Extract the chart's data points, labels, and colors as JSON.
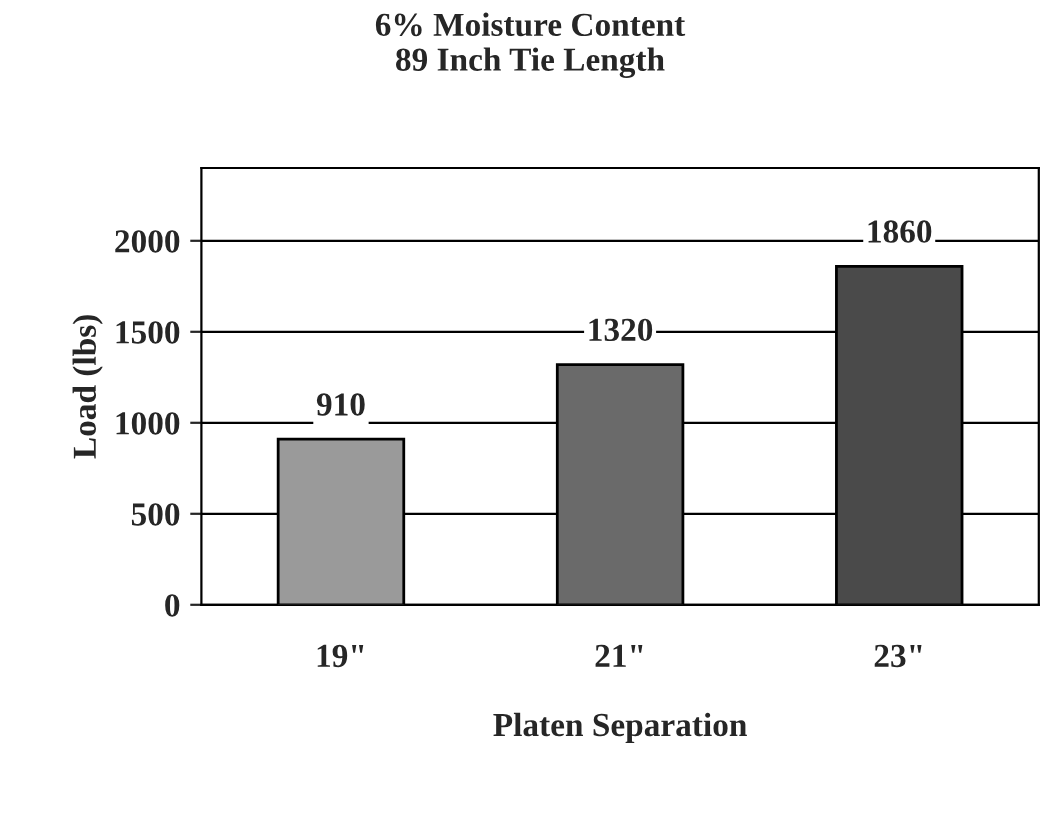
{
  "chart_data": {
    "type": "bar",
    "title": "6% Moisture Content\n89 Inch Tie Length",
    "xlabel": "Platen Separation",
    "ylabel": "Load (lbs)",
    "categories": [
      "19\"",
      "21\"",
      "23\""
    ],
    "values": [
      910,
      1320,
      1860
    ],
    "colors": [
      "#9a9a9a",
      "#6a6a6a",
      "#4a4a4a"
    ],
    "ylim": [
      0,
      2400
    ],
    "yticks": [
      0,
      500,
      1000,
      1500,
      2000
    ],
    "grid": "y",
    "data_labels": true
  }
}
